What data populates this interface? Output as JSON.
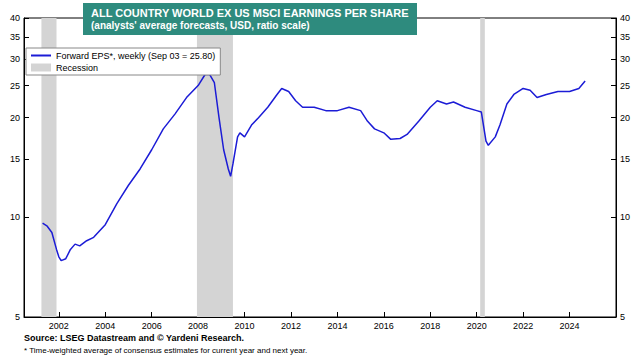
{
  "chart_data": {
    "type": "line",
    "title": "ALL COUNTRY WORLD EX US MSCI EARNINGS PER SHARE",
    "subtitle": "(analysts' average forecasts, USD, ratio scale)",
    "x": [
      2001.3,
      2001.5,
      2001.7,
      2001.9,
      2002.0,
      2002.1,
      2002.3,
      2002.5,
      2002.7,
      2002.9,
      2003.2,
      2003.5,
      2004.0,
      2004.5,
      2005.0,
      2005.5,
      2006.0,
      2006.5,
      2007.0,
      2007.5,
      2008.0,
      2008.3,
      2008.5,
      2008.7,
      2008.9,
      2009.1,
      2009.3,
      2009.4,
      2009.5,
      2009.7,
      2009.8,
      2010.0,
      2010.3,
      2010.6,
      2011.0,
      2011.4,
      2011.6,
      2011.9,
      2012.2,
      2012.5,
      2013.0,
      2013.5,
      2014.0,
      2014.5,
      2015.0,
      2015.3,
      2015.6,
      2016.0,
      2016.3,
      2016.7,
      2017.0,
      2017.5,
      2018.0,
      2018.3,
      2018.7,
      2019.0,
      2019.5,
      2020.0,
      2020.2,
      2020.4,
      2020.5,
      2020.8,
      2021.0,
      2021.3,
      2021.6,
      2022.0,
      2022.3,
      2022.6,
      2023.0,
      2023.5,
      2024.0,
      2024.4,
      2024.67
    ],
    "series": [
      {
        "name": "Forward EPS*, weekly (Sep 03 = 25.80)",
        "color": "#1c1cd6",
        "values": [
          9.6,
          9.4,
          9.0,
          8.0,
          7.6,
          7.4,
          7.5,
          8.0,
          8.3,
          8.2,
          8.5,
          8.7,
          9.5,
          11,
          12.5,
          14,
          16,
          18.5,
          20.5,
          23,
          25,
          27,
          27,
          25.5,
          20,
          16,
          14,
          13.3,
          14.5,
          17.5,
          18,
          17.5,
          19,
          20,
          21.5,
          23.5,
          24.5,
          24,
          22.5,
          21.5,
          21.5,
          21,
          21,
          21.5,
          21,
          19.5,
          18.5,
          18,
          17.2,
          17.3,
          17.8,
          19.5,
          21.5,
          22.5,
          22,
          22.3,
          21.5,
          21,
          20.8,
          17,
          16.5,
          17.5,
          19,
          22,
          23.5,
          24.5,
          24.2,
          23,
          23.5,
          24,
          24,
          24.5,
          25.8
        ]
      }
    ],
    "recessions": {
      "name": "Recession",
      "color": "#d4d4d4",
      "ranges": [
        [
          2001.25,
          2001.9
        ],
        [
          2007.95,
          2009.5
        ],
        [
          2020.15,
          2020.35
        ]
      ]
    },
    "xlim": [
      2000.5,
      2026
    ],
    "xticks": [
      2002,
      2004,
      2006,
      2008,
      2010,
      2012,
      2014,
      2016,
      2018,
      2020,
      2022,
      2024
    ],
    "ylim": [
      5,
      40
    ],
    "yticks": [
      5,
      10,
      15,
      20,
      25,
      30,
      35,
      40
    ],
    "log": "y",
    "grid": false,
    "legend": "upper left",
    "source": "Source: LSEG Datastream and © Yardeni Research.",
    "footnote": "* Time-weighted average of consensus estimates for current year and next year."
  }
}
